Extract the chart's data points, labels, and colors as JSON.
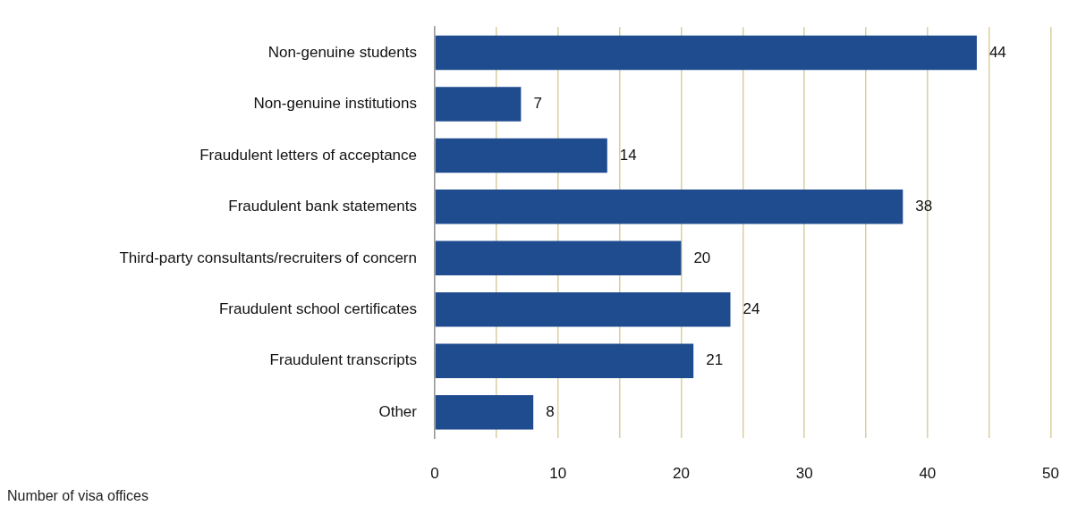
{
  "chart_data": {
    "type": "bar",
    "orientation": "horizontal",
    "xlabel": "Number of visa offices",
    "categories": [
      "Non-genuine students",
      "Non-genuine institutions",
      "Fraudulent letters of acceptance",
      "Fraudulent bank statements",
      "Third-party consultants/recruiters of concern",
      "Fraudulent school certificates",
      "Fraudulent transcripts",
      "Other"
    ],
    "values": [
      44,
      7,
      14,
      38,
      20,
      24,
      21,
      8
    ],
    "color": "#1f4b8f",
    "xlim": [
      0,
      50
    ],
    "xticks": [
      0,
      {
        "value": 5,
        "label": null
      },
      10,
      {
        "value": 15,
        "label": null
      },
      20,
      {
        "value": 25,
        "label": null
      },
      30,
      {
        "value": 35,
        "label": null
      },
      40,
      {
        "value": 45,
        "label": null
      },
      50
    ],
    "grid": "x",
    "legend": false,
    "data_labels": true
  }
}
